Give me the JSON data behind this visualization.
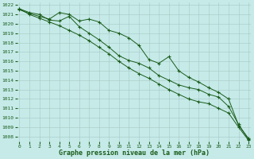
{
  "xlabel": "Graphe pression niveau de la mer (hPa)",
  "bg_color": "#c5eae8",
  "grid_color": "#a8c8c4",
  "line_color": "#1a5c1a",
  "marker": "+",
  "xlim": [
    -0.2,
    23.2
  ],
  "ylim": [
    1007.5,
    1022.3
  ],
  "yticks": [
    1008,
    1009,
    1010,
    1011,
    1012,
    1013,
    1014,
    1015,
    1016,
    1017,
    1018,
    1019,
    1020,
    1021,
    1022
  ],
  "xticks": [
    0,
    1,
    2,
    3,
    4,
    5,
    6,
    7,
    8,
    9,
    10,
    11,
    12,
    13,
    14,
    15,
    16,
    17,
    18,
    19,
    20,
    21,
    22,
    23
  ],
  "line1_x": [
    0,
    1,
    2,
    3,
    4,
    5,
    6,
    7,
    8,
    9,
    10,
    11,
    12,
    13,
    14,
    15,
    16,
    17,
    18,
    19,
    20,
    21,
    22,
    23
  ],
  "line1_y": [
    1021.5,
    1021.1,
    1020.8,
    1020.5,
    1021.2,
    1021.0,
    1020.3,
    1020.5,
    1020.2,
    1019.3,
    1019.0,
    1018.5,
    1017.7,
    1016.2,
    1015.8,
    1016.5,
    1015.0,
    1014.3,
    1013.8,
    1013.2,
    1012.7,
    1012.0,
    1009.2,
    1007.8
  ],
  "line2_x": [
    0,
    1,
    2,
    3,
    4,
    5,
    6,
    7,
    8,
    9,
    10,
    11,
    12,
    13,
    14,
    15,
    16,
    17,
    18,
    19,
    20,
    21,
    22,
    23
  ],
  "line2_y": [
    1021.6,
    1021.2,
    1021.0,
    1020.4,
    1020.3,
    1020.8,
    1019.7,
    1019.0,
    1018.3,
    1017.5,
    1016.6,
    1016.1,
    1015.8,
    1015.3,
    1014.5,
    1014.0,
    1013.5,
    1013.2,
    1013.0,
    1012.5,
    1012.2,
    1011.2,
    1009.3,
    1007.7
  ],
  "line3_x": [
    0,
    1,
    2,
    3,
    4,
    5,
    6,
    7,
    8,
    9,
    10,
    11,
    12,
    13,
    14,
    15,
    16,
    17,
    18,
    19,
    20,
    21,
    22,
    23
  ],
  "line3_y": [
    1021.6,
    1021.0,
    1020.6,
    1020.2,
    1019.8,
    1019.3,
    1018.8,
    1018.2,
    1017.5,
    1016.8,
    1016.0,
    1015.3,
    1014.7,
    1014.2,
    1013.6,
    1013.0,
    1012.5,
    1012.0,
    1011.7,
    1011.5,
    1011.0,
    1010.5,
    1009.0,
    1007.6
  ],
  "tick_fontsize": 4.5,
  "label_fontsize": 6.0,
  "ms": 3,
  "lw": 0.7,
  "mew": 0.8
}
